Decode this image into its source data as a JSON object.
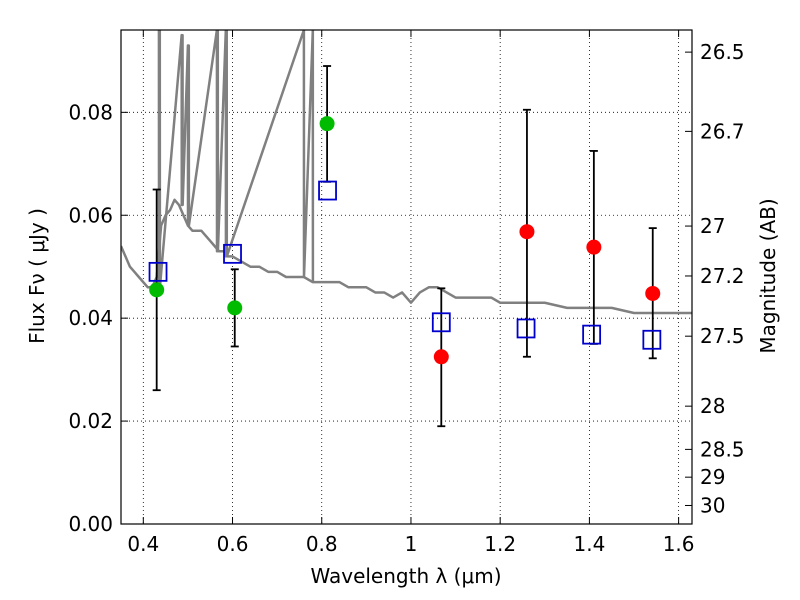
{
  "chart_data": {
    "type": "scatter",
    "xlabel": "Wavelength  λ (μm)",
    "ylabel": "Flux  Fν  ( μJy )",
    "y2label": "Magnitude (AB)",
    "xlim": [
      0.35,
      1.63
    ],
    "ylim": [
      0.0,
      0.096
    ],
    "grid": true,
    "x_ticks": [
      0.4,
      0.6,
      0.8,
      1.0,
      1.2,
      1.4,
      1.6
    ],
    "x_tick_labels": [
      "0.4",
      "0.6",
      "0.8",
      "1",
      "1.2",
      "1.4",
      "1.6"
    ],
    "y_ticks": [
      0.0,
      0.02,
      0.04,
      0.06,
      0.08
    ],
    "y_tick_labels": [
      "0.00",
      "0.02",
      "0.04",
      "0.06",
      "0.08"
    ],
    "y2_ticks": [
      {
        "label": "26.5",
        "flux": 0.0917
      },
      {
        "label": "26.7",
        "flux": 0.0763
      },
      {
        "label": "27",
        "flux": 0.0579
      },
      {
        "label": "27.2",
        "flux": 0.0482
      },
      {
        "label": "27.5",
        "flux": 0.0365
      },
      {
        "label": "28",
        "flux": 0.0229
      },
      {
        "label": "28.5",
        "flux": 0.0145
      },
      {
        "label": "29",
        "flux": 0.0091
      },
      {
        "label": "30",
        "flux": 0.0036
      }
    ],
    "series": [
      {
        "style": "line",
        "color": "#808080",
        "x": [
          0.35,
          0.36,
          0.37,
          0.38,
          0.39,
          0.4,
          0.41,
          0.42,
          0.43,
          0.44,
          0.45,
          0.46,
          0.47,
          0.48,
          0.49,
          0.5,
          0.51,
          0.52,
          0.53,
          0.54,
          0.55,
          0.56,
          0.57,
          0.58,
          0.59,
          0.6,
          0.62,
          0.64,
          0.66,
          0.68,
          0.7,
          0.72,
          0.74,
          0.76,
          0.78,
          0.8,
          0.82,
          0.84,
          0.86,
          0.88,
          0.9,
          0.92,
          0.94,
          0.96,
          0.98,
          1.0,
          1.02,
          1.04,
          1.06,
          1.08,
          1.1,
          1.12,
          1.14,
          1.16,
          1.18,
          1.2,
          1.22,
          1.24,
          1.26,
          1.3,
          1.35,
          1.4,
          1.45,
          1.5,
          1.55,
          1.58,
          1.6,
          1.63
        ],
        "y": [
          0.054,
          0.052,
          0.05,
          0.049,
          0.048,
          0.047,
          0.046,
          0.046,
          0.048,
          0.058,
          0.06,
          0.061,
          0.063,
          0.062,
          0.06,
          0.058,
          0.057,
          0.057,
          0.057,
          0.056,
          0.055,
          0.054,
          0.053,
          0.053,
          0.052,
          0.052,
          0.051,
          0.05,
          0.05,
          0.049,
          0.049,
          0.048,
          0.048,
          0.048,
          0.047,
          0.047,
          0.047,
          0.047,
          0.046,
          0.046,
          0.046,
          0.045,
          0.045,
          0.044,
          0.045,
          0.043,
          0.045,
          0.046,
          0.046,
          0.045,
          0.044,
          0.044,
          0.044,
          0.044,
          0.044,
          0.043,
          0.043,
          0.043,
          0.043,
          0.043,
          0.042,
          0.042,
          0.042,
          0.041,
          0.041,
          0.041,
          0.041,
          0.041
        ]
      },
      {
        "style": "line",
        "color": "#808080",
        "x": [
          0.435,
          0.4352,
          0.437,
          0.4372,
          0.486,
          0.4862,
          0.488,
          0.4882,
          0.5,
          0.5002,
          0.502,
          0.5022,
          0.565,
          0.5652,
          0.567,
          0.5672,
          0.585,
          0.5852,
          0.587,
          0.5872,
          0.76,
          0.7602,
          0.78,
          0.7802
        ],
        "y": [
          0.096,
          0.046,
          0.096,
          0.046,
          0.095,
          0.062,
          0.095,
          0.062,
          0.093,
          0.058,
          0.093,
          0.058,
          0.096,
          0.053,
          0.096,
          0.053,
          0.096,
          0.052,
          0.096,
          0.052,
          0.096,
          0.048,
          0.096,
          0.047
        ]
      },
      {
        "style": "markers",
        "marker": "filled-circle",
        "color": "#00bb00",
        "x": [
          0.43,
          0.605,
          0.812
        ],
        "y": [
          0.0455,
          0.042,
          0.0778
        ],
        "yerr_low": [
          0.026,
          0.0345,
          0.0665
        ],
        "yerr_high": [
          0.065,
          0.0495,
          0.089
        ]
      },
      {
        "style": "markers",
        "marker": "filled-circle",
        "color": "#ff0000",
        "x": [
          1.068,
          1.26,
          1.41,
          1.542
        ],
        "y": [
          0.0325,
          0.0568,
          0.0538,
          0.0448
        ],
        "yerr_low": [
          0.019,
          0.0325,
          0.035,
          0.0322
        ],
        "yerr_high": [
          0.0458,
          0.0805,
          0.0725,
          0.0575
        ]
      },
      {
        "style": "markers",
        "marker": "open-square",
        "color": "#0000cc",
        "x": [
          0.433,
          0.6,
          0.813,
          1.068,
          1.258,
          1.405,
          1.54
        ],
        "y": [
          0.049,
          0.0525,
          0.0648,
          0.0392,
          0.038,
          0.0368,
          0.0358
        ]
      }
    ]
  }
}
